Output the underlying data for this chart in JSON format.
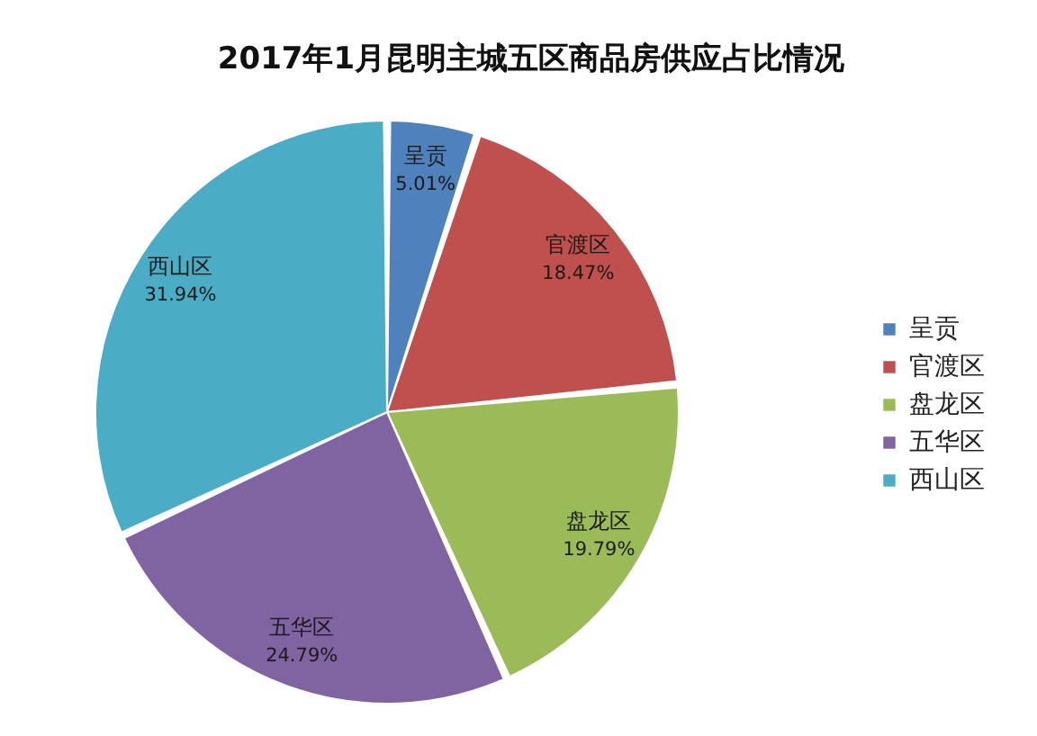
{
  "chart_data": {
    "type": "pie",
    "title": "2017年1月昆明主城五区商品房供应占比情况",
    "categories": [
      "呈贡",
      "官渡区",
      "盘龙区",
      "五华区",
      "西山区"
    ],
    "values": [
      5.01,
      18.47,
      19.79,
      24.79,
      31.94
    ],
    "colors": [
      "#4f81bd",
      "#c0504d",
      "#9bbb59",
      "#8064a2",
      "#4bacc6"
    ],
    "value_labels": [
      "5.01%",
      "18.47%",
      "19.79%",
      "24.79%",
      "31.94%"
    ],
    "legend": "right"
  }
}
